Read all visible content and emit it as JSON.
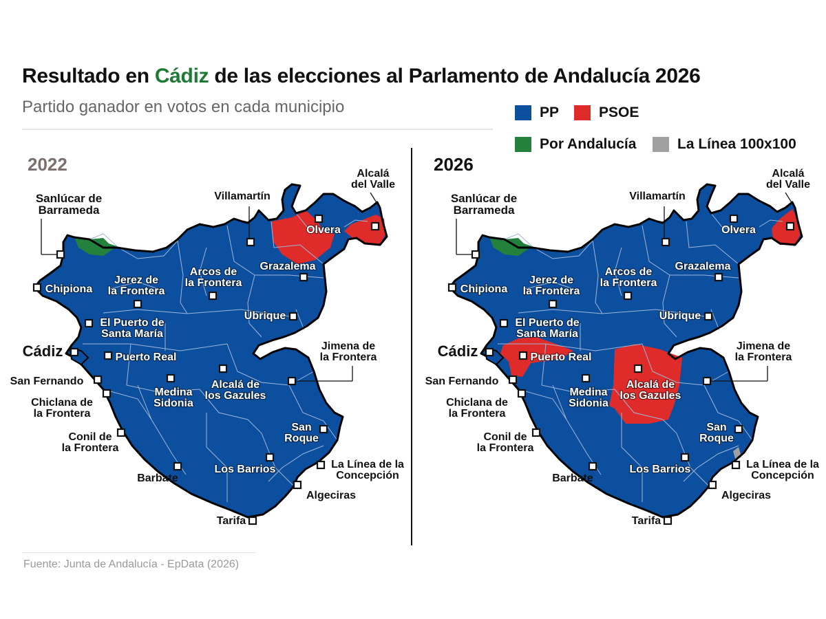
{
  "title": {
    "before": "Resultado en ",
    "highlight": "Cádiz",
    "after": " de las elecciones al Parlamento de Andalucía 2026"
  },
  "subtitle": "Partido ganador en votos en cada municipio",
  "colors": {
    "pp": "#0d4f9f",
    "psoe": "#e02b2b",
    "por_andalucia": "#24803d",
    "la_linea": "#a0a0a0",
    "border": "#000000",
    "internal": "#9fb6d8",
    "title_highlight": "#1e7a35"
  },
  "legend": [
    {
      "key": "pp",
      "label": "PP"
    },
    {
      "key": "psoe",
      "label": "PSOE"
    },
    {
      "key": "por_andalucia",
      "label": "Por Andalucía"
    },
    {
      "key": "la_linea",
      "label": "La Línea 100x100"
    }
  ],
  "maps": [
    {
      "year": "2022"
    },
    {
      "year": "2026"
    }
  ],
  "municipalities": [
    {
      "name": "Sanlúcar de Barrameda",
      "lines": [
        "Sanlúcar de",
        "Barrameda"
      ],
      "winner_2022": "por_andalucia",
      "winner_2026": "por_andalucia"
    },
    {
      "name": "Chipiona",
      "lines": [
        "Chipiona"
      ],
      "winner_2022": "pp",
      "winner_2026": "pp"
    },
    {
      "name": "Jerez de la Frontera",
      "lines": [
        "Jerez de",
        "la Frontera"
      ],
      "winner_2022": "pp",
      "winner_2026": "pp"
    },
    {
      "name": "Villamartín",
      "lines": [
        "Villamartín"
      ],
      "winner_2022": "pp",
      "winner_2026": "pp"
    },
    {
      "name": "Arcos de la Frontera",
      "lines": [
        "Arcos de",
        "la Frontera"
      ],
      "winner_2022": "pp",
      "winner_2026": "pp"
    },
    {
      "name": "Olvera",
      "lines": [
        "Olvera"
      ],
      "winner_2022": "psoe",
      "winner_2026": "pp"
    },
    {
      "name": "Alcalá del Valle",
      "lines": [
        "Alcalá",
        "del Valle"
      ],
      "winner_2022": "psoe",
      "winner_2026": "psoe"
    },
    {
      "name": "Grazalema",
      "lines": [
        "Grazalema"
      ],
      "winner_2022": "psoe",
      "winner_2026": "pp"
    },
    {
      "name": "Ubrique",
      "lines": [
        "Ubrique"
      ],
      "winner_2022": "pp",
      "winner_2026": "pp"
    },
    {
      "name": "El Puerto de Santa María",
      "lines": [
        "El Puerto de",
        "Santa María"
      ],
      "winner_2022": "pp",
      "winner_2026": "pp"
    },
    {
      "name": "Cádiz",
      "lines": [
        "Cádiz"
      ],
      "winner_2022": "pp",
      "winner_2026": "pp"
    },
    {
      "name": "Puerto Real",
      "lines": [
        "Puerto Real"
      ],
      "winner_2022": "pp",
      "winner_2026": "psoe"
    },
    {
      "name": "San Fernando",
      "lines": [
        "San Fernando"
      ],
      "winner_2022": "pp",
      "winner_2026": "pp"
    },
    {
      "name": "Chiclana de la Frontera",
      "lines": [
        "Chiclana de",
        "la Frontera"
      ],
      "winner_2022": "pp",
      "winner_2026": "pp"
    },
    {
      "name": "Medina Sidonia",
      "lines": [
        "Medina",
        "Sidonia"
      ],
      "winner_2022": "pp",
      "winner_2026": "pp"
    },
    {
      "name": "Alcalá de los Gazules",
      "lines": [
        "Alcalá de",
        "los Gazules"
      ],
      "winner_2022": "pp",
      "winner_2026": "psoe"
    },
    {
      "name": "Jimena de la Frontera",
      "lines": [
        "Jimena de",
        "la Frontera"
      ],
      "winner_2022": "pp",
      "winner_2026": "pp"
    },
    {
      "name": "Conil de la Frontera",
      "lines": [
        "Conil de",
        "la Frontera"
      ],
      "winner_2022": "pp",
      "winner_2026": "pp"
    },
    {
      "name": "San Roque",
      "lines": [
        "San",
        "Roque"
      ],
      "winner_2022": "pp",
      "winner_2026": "pp"
    },
    {
      "name": "La Línea de la Concepción",
      "lines": [
        "La Línea de la",
        "Concepción"
      ],
      "winner_2022": "pp",
      "winner_2026": "la_linea"
    },
    {
      "name": "Los Barrios",
      "lines": [
        "Los Barrios"
      ],
      "winner_2022": "pp",
      "winner_2026": "pp"
    },
    {
      "name": "Barbate",
      "lines": [
        "Barbate"
      ],
      "winner_2022": "pp",
      "winner_2026": "pp"
    },
    {
      "name": "Algeciras",
      "lines": [
        "Algeciras"
      ],
      "winner_2022": "pp",
      "winner_2026": "pp"
    },
    {
      "name": "Tarifa",
      "lines": [
        "Tarifa"
      ],
      "winner_2022": "pp",
      "winner_2026": "pp"
    }
  ],
  "source": "Fuente: Junta de Andalucía - EpData (2026)"
}
